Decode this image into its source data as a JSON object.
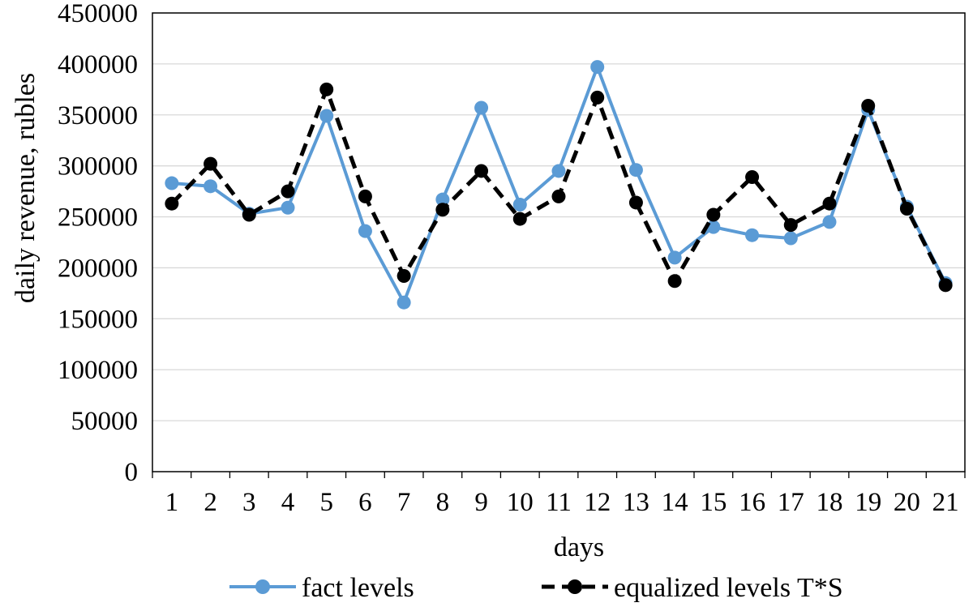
{
  "chart_data": {
    "type": "line",
    "title": "",
    "xlabel": "days",
    "ylabel": "daily revenue, rubles",
    "ylim": [
      0,
      450000
    ],
    "yticks": [
      "0",
      "50000",
      "100000",
      "150000",
      "200000",
      "250000",
      "300000",
      "350000",
      "400000",
      "450000"
    ],
    "categories": [
      "1",
      "2",
      "3",
      "4",
      "5",
      "6",
      "7",
      "8",
      "9",
      "10",
      "11",
      "12",
      "13",
      "14",
      "15",
      "16",
      "17",
      "18",
      "19",
      "20",
      "21"
    ],
    "grid": "horizontal",
    "legend_position": "bottom",
    "series": [
      {
        "name": "fact levels",
        "color": "#5b9bd5",
        "line_style": "solid",
        "marker": "circle",
        "values": [
          283000,
          280000,
          253000,
          259000,
          349000,
          236000,
          166000,
          267000,
          357000,
          262000,
          295000,
          397000,
          296000,
          210000,
          240000,
          232000,
          229000,
          245000,
          355000,
          260000,
          185000
        ]
      },
      {
        "name": "equalized levels T*S",
        "color": "#000000",
        "line_style": "dashed",
        "marker": "circle",
        "values": [
          263000,
          302000,
          252000,
          275000,
          375000,
          270000,
          192000,
          257000,
          295000,
          248000,
          270000,
          367000,
          264000,
          187000,
          252000,
          289000,
          242000,
          263000,
          359000,
          258000,
          183000
        ]
      }
    ]
  }
}
